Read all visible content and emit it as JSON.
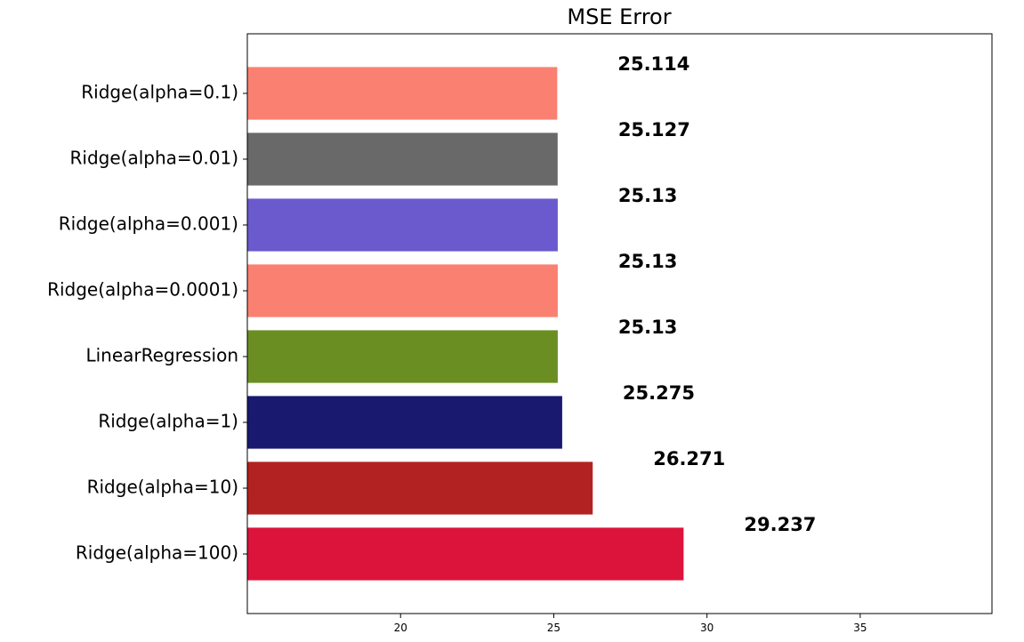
{
  "chart_data": {
    "type": "bar",
    "orientation": "horizontal",
    "title": "MSE Error",
    "xlabel": "",
    "ylabel": "",
    "categories": [
      "Ridge(alpha=0.1)",
      "Ridge(alpha=0.01)",
      "Ridge(alpha=0.001)",
      "Ridge(alpha=0.0001)",
      "LinearRegression",
      "Ridge(alpha=1)",
      "Ridge(alpha=10)",
      "Ridge(alpha=100)"
    ],
    "values": [
      25.114,
      25.127,
      25.13,
      25.13,
      25.13,
      25.275,
      26.271,
      29.237
    ],
    "data_labels": [
      "25.114",
      "25.127",
      "25.13",
      "25.13",
      "25.13",
      "25.275",
      "26.271",
      "29.237"
    ],
    "colors": [
      "#fa8072",
      "#696969",
      "#6a5acd",
      "#fa8072",
      "#6b8e23",
      "#191970",
      "#b22222",
      "#dc143c"
    ],
    "xlim": [
      15,
      39.3
    ],
    "xticks": [
      20,
      25,
      30,
      35
    ],
    "xtick_labels": [
      "20",
      "25",
      "30",
      "35"
    ],
    "grid": false,
    "legend": "none"
  }
}
